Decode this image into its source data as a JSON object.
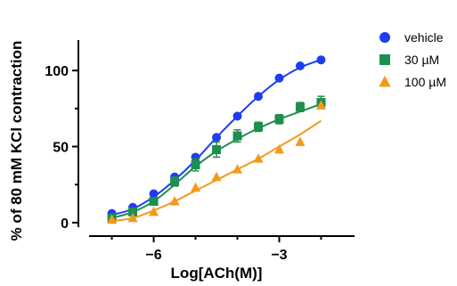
{
  "chart_data": {
    "type": "scatter",
    "xlabel": "Log[ACh(M)]",
    "ylabel": "% of 80 mM KCl contraction",
    "xlim": [
      -7.8,
      -1.2
    ],
    "ylim": [
      -3,
      120
    ],
    "xticks": [
      -6,
      -3
    ],
    "yticks": [
      0,
      50,
      100
    ],
    "x_minor_ticks": [
      -7,
      -5,
      -4,
      -2
    ],
    "grid": false,
    "legend_position": "top-right",
    "series": [
      {
        "name": "vehicle",
        "color": "#1f3df0",
        "marker": "circle",
        "x": [
          -7,
          -6.5,
          -6,
          -5.5,
          -5,
          -4.5,
          -4,
          -3.5,
          -3,
          -2.5,
          -2
        ],
        "y": [
          6,
          10,
          19,
          30,
          43,
          56,
          70,
          83,
          95,
          103,
          107
        ],
        "fit_y": [
          5,
          9,
          17,
          28,
          41,
          56,
          70,
          83,
          94,
          102,
          107
        ]
      },
      {
        "name": "30 µM",
        "color": "#1e8f4e",
        "marker": "square",
        "x": [
          -7,
          -6.5,
          -6,
          -5.5,
          -5,
          -4.5,
          -4,
          -3.5,
          -3,
          -2.5,
          -2
        ],
        "y": [
          3,
          7,
          14,
          27,
          38,
          48,
          57,
          63,
          68,
          76,
          79
        ],
        "error": [
          2,
          2,
          2,
          3,
          4,
          5,
          4,
          3,
          3,
          3,
          4
        ],
        "fit_y": [
          3,
          7,
          14,
          25,
          37,
          47,
          55,
          62,
          68,
          73,
          78
        ]
      },
      {
        "name": "100 µM",
        "color": "#f39a1c",
        "marker": "triangle",
        "x": [
          -7,
          -6.5,
          -6,
          -5.5,
          -5,
          -4.5,
          -4,
          -3.5,
          -3,
          -2.5,
          -2
        ],
        "y": [
          2,
          3,
          7,
          14,
          23,
          30,
          35,
          42,
          48,
          53,
          77
        ],
        "fit_y": [
          1,
          3,
          8,
          14,
          21,
          28,
          35,
          42,
          50,
          58,
          67
        ]
      }
    ]
  }
}
